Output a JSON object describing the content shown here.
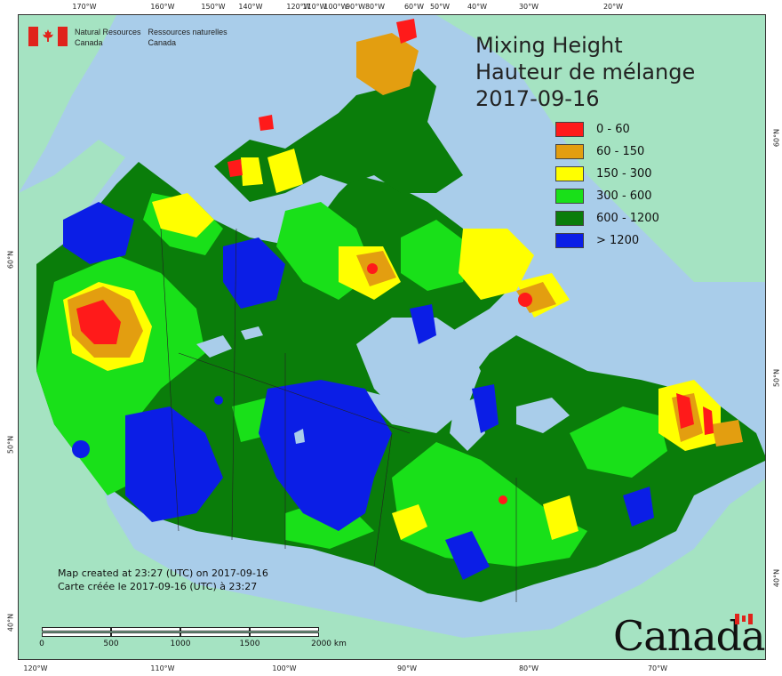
{
  "header": {
    "agency_en": "Natural Resources",
    "agency_en_2": "Canada",
    "agency_fr": "Ressources naturelles",
    "agency_fr_2": "Canada"
  },
  "title": {
    "line1": "Mixing Height",
    "line2": "Hauteur de mélange",
    "date": "2017-09-16"
  },
  "legend": [
    {
      "label": "0 - 60",
      "color": "#ff1a1a"
    },
    {
      "label": "60 - 150",
      "color": "#e39e10"
    },
    {
      "label": "150 - 300",
      "color": "#ffff00"
    },
    {
      "label": "300 - 600",
      "color": "#19e019"
    },
    {
      "label": "600 - 1200",
      "color": "#0a7d0a"
    },
    {
      "label": "> 1200",
      "color": "#0b1ee6"
    }
  ],
  "credit": {
    "line1": "Map created at 23:27 (UTC) on 2017-09-16",
    "line2": "Carte créée le 2017-09-16 (UTC) à 23:27"
  },
  "scale": {
    "labels": [
      "0",
      "500",
      "1000",
      "1500",
      "2000 km"
    ]
  },
  "graticule": {
    "top": [
      "170°W",
      "160°W",
      "150°W",
      "140°W",
      "120°W",
      "110°W",
      "100°W",
      "90°W",
      "80°W",
      "60°W",
      "50°W",
      "40°W",
      "30°W",
      "20°W"
    ],
    "bottom": [
      "120°W",
      "110°W",
      "100°W",
      "90°W",
      "80°W",
      "70°W"
    ],
    "left": [
      "60°N",
      "50°N",
      "40°N"
    ],
    "right": [
      "60°N",
      "50°N",
      "40°N"
    ]
  },
  "wordmark": "Canada"
}
